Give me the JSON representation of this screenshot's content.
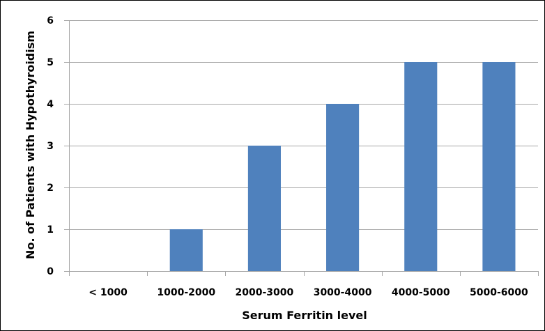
{
  "chart_data": {
    "type": "bar",
    "title": "",
    "xlabel": "Serum Ferritin level",
    "ylabel": "No. of Patients with Hypothyroidism",
    "categories": [
      "< 1000",
      "1000-2000",
      "2000-3000",
      "3000-4000",
      "4000-5000",
      "5000-6000"
    ],
    "values": [
      0,
      1,
      3,
      4,
      5,
      5
    ],
    "ylim": [
      0,
      6
    ],
    "yticks": [
      "0",
      "1",
      "2",
      "3",
      "4",
      "5",
      "6"
    ],
    "grid": true,
    "legend": "none",
    "bar_color": "#4F81BD",
    "grid_color": "#A6A6A6"
  }
}
